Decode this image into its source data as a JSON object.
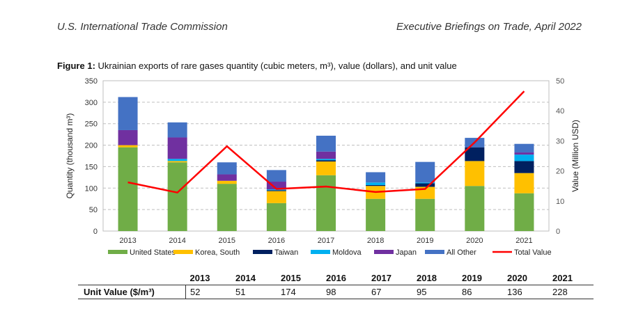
{
  "header": {
    "left": "U.S. International Trade Commission",
    "right": "Executive Briefings on Trade, April 2022"
  },
  "caption": {
    "label": "Figure 1:",
    "text": "Ukrainian exports of rare gases quantity (cubic meters, m³), value (dollars), and unit value"
  },
  "chart_data": {
    "type": "bar",
    "stacked": true,
    "categories": [
      "2013",
      "2014",
      "2015",
      "2016",
      "2017",
      "2018",
      "2019",
      "2020",
      "2021"
    ],
    "ylabel": "Quantity (thousand m³)",
    "y2label": "Value (Million USD)",
    "ylim": [
      0,
      350
    ],
    "yticks": [
      0,
      50,
      100,
      150,
      200,
      250,
      300,
      350
    ],
    "y2lim": [
      0,
      50
    ],
    "y2ticks": [
      0,
      10,
      20,
      30,
      40,
      50
    ],
    "grid": true,
    "legend_position": "bottom",
    "series": [
      {
        "name": "United States",
        "color": "#70ad47",
        "values": [
          195,
          160,
          110,
          65,
          130,
          75,
          75,
          105,
          88
        ]
      },
      {
        "name": "Korea, South",
        "color": "#ffc000",
        "values": [
          5,
          3,
          7,
          28,
          32,
          30,
          28,
          58,
          47
        ]
      },
      {
        "name": "Taiwan",
        "color": "#002060",
        "values": [
          0,
          0,
          0,
          2,
          3,
          2,
          8,
          32,
          28
        ]
      },
      {
        "name": "Moldova",
        "color": "#00b0f0",
        "values": [
          0,
          5,
          0,
          2,
          3,
          6,
          2,
          0,
          15
        ]
      },
      {
        "name": "Japan",
        "color": "#7030a0",
        "values": [
          35,
          50,
          15,
          18,
          17,
          0,
          0,
          0,
          5
        ]
      },
      {
        "name": "All Other",
        "color": "#4472c4",
        "values": [
          77,
          35,
          28,
          27,
          37,
          24,
          48,
          22,
          20
        ]
      }
    ],
    "line": {
      "name": "Total Value",
      "color": "#ff0000",
      "axis": "right",
      "values": [
        16.2,
        12.8,
        28.2,
        14,
        14.8,
        13,
        14,
        29.5,
        46.5
      ]
    }
  },
  "unit_value_table": {
    "label": "Unit Value ($/m³)",
    "years": [
      "2013",
      "2014",
      "2015",
      "2016",
      "2017",
      "2018",
      "2019",
      "2020",
      "2021"
    ],
    "values": [
      "52",
      "51",
      "174",
      "98",
      "67",
      "95",
      "86",
      "136",
      "228"
    ]
  }
}
